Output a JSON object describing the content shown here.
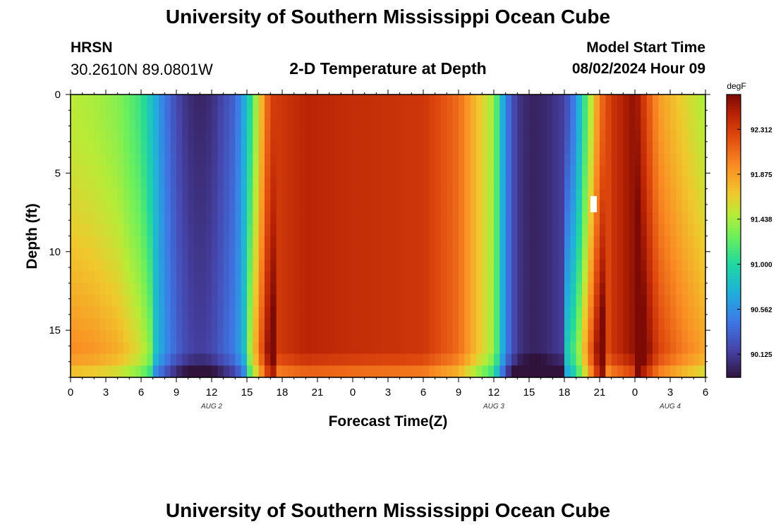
{
  "header": {
    "title": "University of Southern Mississippi Ocean Cube",
    "station": "HRSN",
    "coords": "30.2610N  89.0801W",
    "subtitle": "2-D Temperature at Depth",
    "model_start_label": "Model Start Time",
    "model_start_value": "08/02/2024 Hour 09"
  },
  "footer": {
    "title": "University of Southern Mississippi Ocean Cube"
  },
  "chart_data": {
    "type": "heatmap",
    "title": "2-D Temperature at Depth",
    "xlabel": "Forecast Time(Z)",
    "ylabel": "Depth (ft)",
    "x_tick_labels": [
      "0",
      "3",
      "6",
      "9",
      "12",
      "15",
      "18",
      "21",
      "0",
      "3",
      "6",
      "9",
      "12",
      "15",
      "18",
      "21",
      "0",
      "3",
      "6"
    ],
    "date_labels": [
      {
        "label": "AUG 2",
        "hour": 12
      },
      {
        "label": "AUG 3",
        "hour": 36
      },
      {
        "label": "AUG 4",
        "hour": 51
      }
    ],
    "x_range_hours": [
      0,
      54
    ],
    "y_ticks": [
      0,
      5,
      10,
      15
    ],
    "ylim": [
      0,
      18
    ],
    "colorbar": {
      "unit": "degF",
      "ticks": [
        "92.312",
        "91.875",
        "91.438",
        "91.000",
        "90.562",
        "90.125"
      ],
      "tick_values": [
        92.312,
        91.875,
        91.438,
        91.0,
        90.562,
        90.125
      ],
      "range": [
        89.9,
        92.65
      ]
    },
    "surface_profile_keypoints": {
      "hours": [
        0,
        2,
        4,
        6,
        7,
        8,
        9,
        10,
        11,
        12,
        14,
        15,
        16,
        17,
        18,
        20,
        24,
        30,
        33,
        36,
        37,
        38,
        39,
        40,
        42,
        43,
        44,
        45,
        46,
        48,
        50,
        52,
        54
      ],
      "temps_degF": [
        91.5,
        91.45,
        91.35,
        91.1,
        90.8,
        90.45,
        90.2,
        90.05,
        90.0,
        90.05,
        90.35,
        90.8,
        91.6,
        92.3,
        92.35,
        92.45,
        92.4,
        92.35,
        92.1,
        91.4,
        90.5,
        90.1,
        90.0,
        90.0,
        90.15,
        90.55,
        91.3,
        92.05,
        92.35,
        92.6,
        91.9,
        91.65,
        91.45
      ]
    }
  }
}
